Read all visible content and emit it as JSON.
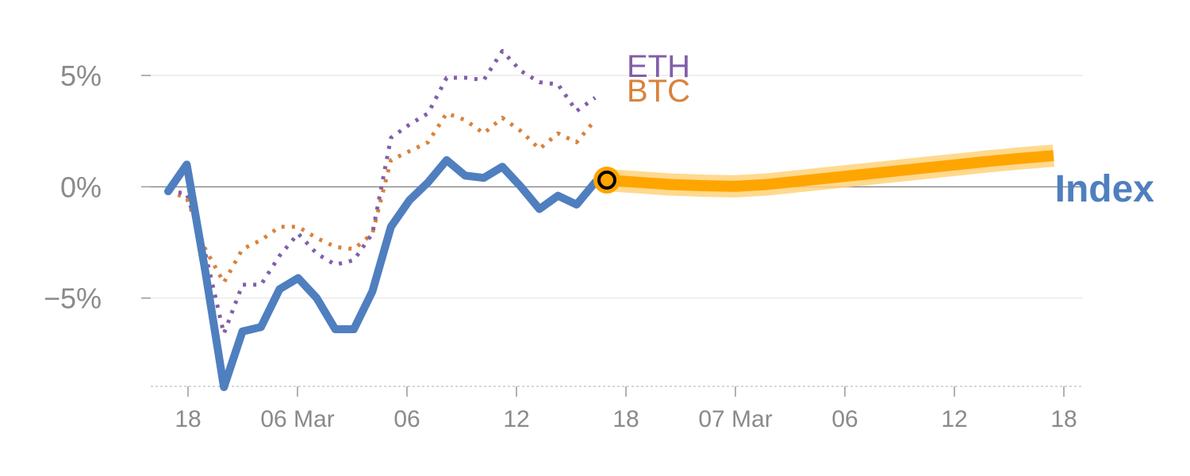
{
  "chart_data": {
    "type": "line",
    "title": "",
    "xlabel": "",
    "ylabel": "",
    "x_tick_labels": [
      "18",
      "06 Mar",
      "06",
      "12",
      "18",
      "07 Mar",
      "06",
      "12",
      "18"
    ],
    "y_tick_labels": [
      "5%",
      "0%",
      "−5%"
    ],
    "y_ticks": [
      5,
      0,
      -5
    ],
    "ylim": [
      -9.5,
      7.5
    ],
    "grid": true,
    "colors": {
      "index": "#4f7fbf",
      "eth": "#8060a8",
      "btc": "#d9823b",
      "forecast": "#ffa500",
      "forecast_halo": "#ffd27a",
      "marker_fill": "#ffa500",
      "marker_ring": "#000000",
      "grid": "#e6e6e6",
      "zero_line": "#8a8a8a",
      "axis": "#cccccc"
    },
    "series": [
      {
        "name": "Index",
        "style": "solid",
        "values": [
          -0.2,
          1.0,
          -3.8,
          -9.0,
          -6.5,
          -6.3,
          -4.6,
          -4.1,
          -5.0,
          -6.4,
          -6.4,
          -4.7,
          -1.8,
          -0.6,
          0.2,
          1.2,
          0.5,
          0.4,
          0.9,
          0.0,
          -1.0,
          -0.4,
          -0.8,
          0.2
        ]
      },
      {
        "name": "ETH",
        "style": "dotted",
        "values": [
          -0.2,
          -0.3,
          -3.0,
          -6.6,
          -4.4,
          -4.4,
          -3.1,
          -2.1,
          -3.0,
          -3.5,
          -3.3,
          -2.1,
          2.2,
          2.8,
          3.3,
          4.9,
          4.9,
          4.8,
          6.1,
          5.2,
          4.7,
          4.6,
          3.4,
          4.0
        ]
      },
      {
        "name": "BTC",
        "style": "dotted",
        "values": [
          -0.2,
          -0.5,
          -2.8,
          -4.3,
          -2.8,
          -2.4,
          -1.8,
          -1.8,
          -2.3,
          -2.7,
          -2.8,
          -2.1,
          1.2,
          1.6,
          2.0,
          3.3,
          3.0,
          2.4,
          3.1,
          2.5,
          1.7,
          2.4,
          2.0,
          3.0
        ]
      }
    ],
    "forecast": {
      "name": "forecast",
      "style": "thick-solid",
      "values": [
        0.3,
        0.2,
        0.1,
        0.05,
        0.02,
        0.1,
        0.25,
        0.4,
        0.55,
        0.7,
        0.85,
        1.0,
        1.15,
        1.28,
        1.4
      ]
    },
    "current_marker": {
      "value": 0.3
    },
    "labels": {
      "eth": "ETH",
      "btc": "BTC",
      "index": "Index"
    }
  }
}
